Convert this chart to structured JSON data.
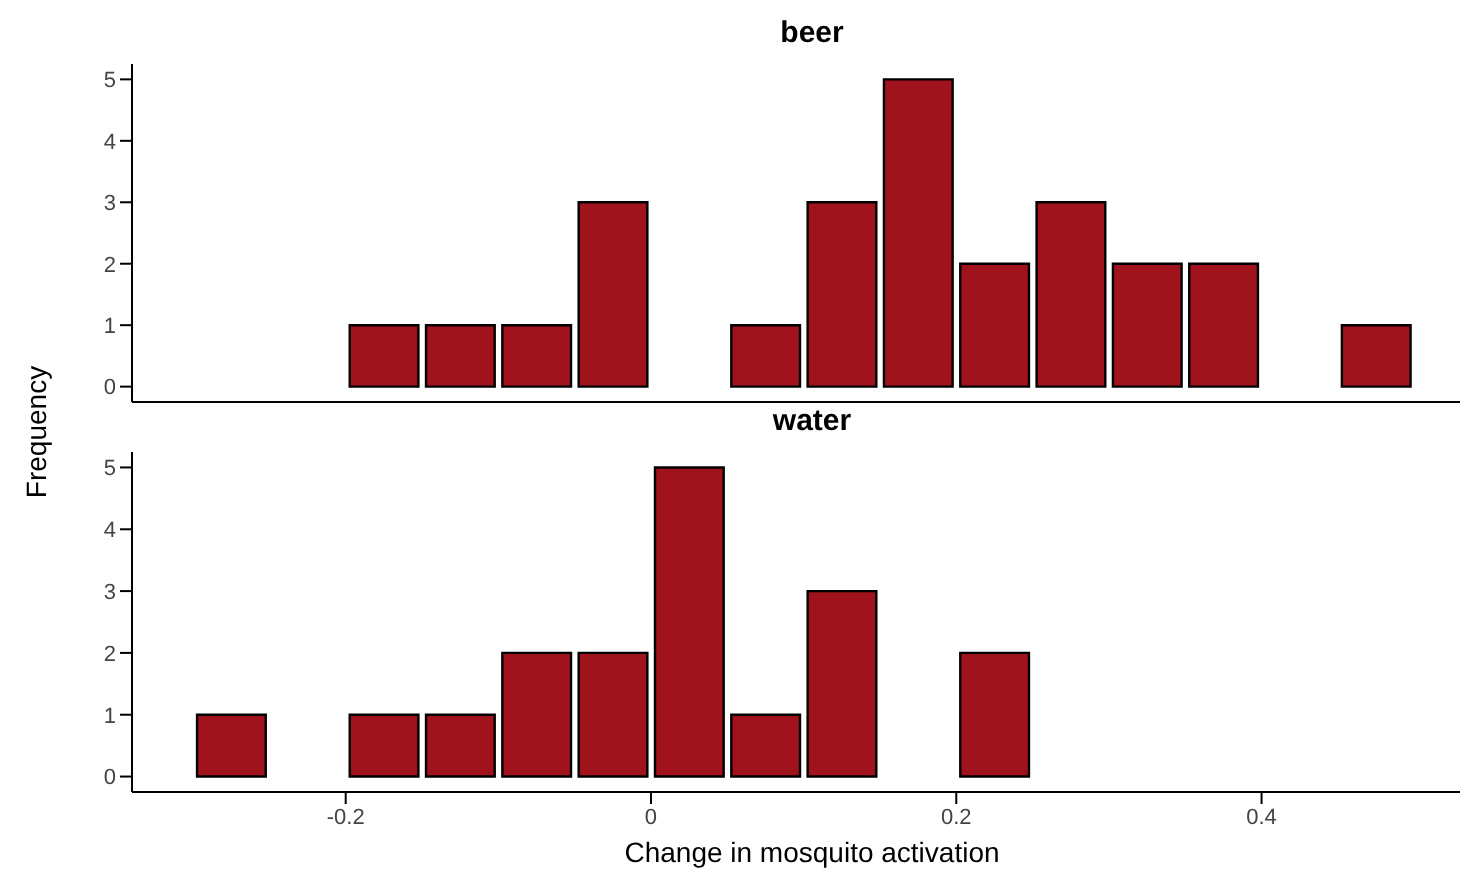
{
  "chart_data": [
    {
      "type": "histogram",
      "title": "beer",
      "ylabel": "Frequency",
      "bins": [
        -0.3,
        -0.25,
        -0.2,
        -0.15,
        -0.1,
        -0.05,
        0,
        0.05,
        0.1,
        0.15,
        0.2,
        0.25,
        0.3,
        0.35,
        0.4,
        0.45,
        0.5
      ],
      "values": [
        0,
        0,
        1,
        1,
        1,
        3,
        0,
        1,
        3,
        5,
        2,
        3,
        2,
        2,
        0,
        1
      ],
      "color": "#a0121c",
      "xlim": [
        -0.34,
        0.53
      ],
      "ylim": [
        -0.25,
        5.25
      ],
      "yticks": [
        0,
        1,
        2,
        3,
        4,
        5
      ],
      "tick_labels": "y"
    },
    {
      "type": "histogram",
      "title": "water",
      "xlabel": "Change in mosquito activation",
      "bins": [
        -0.3,
        -0.25,
        -0.2,
        -0.15,
        -0.1,
        -0.05,
        0,
        0.05,
        0.1,
        0.15,
        0.2,
        0.25,
        0.3,
        0.35,
        0.4,
        0.45,
        0.5
      ],
      "values": [
        1,
        0,
        1,
        1,
        2,
        2,
        5,
        1,
        3,
        0,
        2,
        0,
        0,
        0,
        0,
        0
      ],
      "color": "#a0121c",
      "xlim": [
        -0.34,
        0.53
      ],
      "xticks": [
        -0.2,
        0,
        0.2,
        0.4
      ],
      "ylim": [
        -0.25,
        5.25
      ],
      "yticks": [
        0,
        1,
        2,
        3,
        4,
        5
      ]
    }
  ]
}
